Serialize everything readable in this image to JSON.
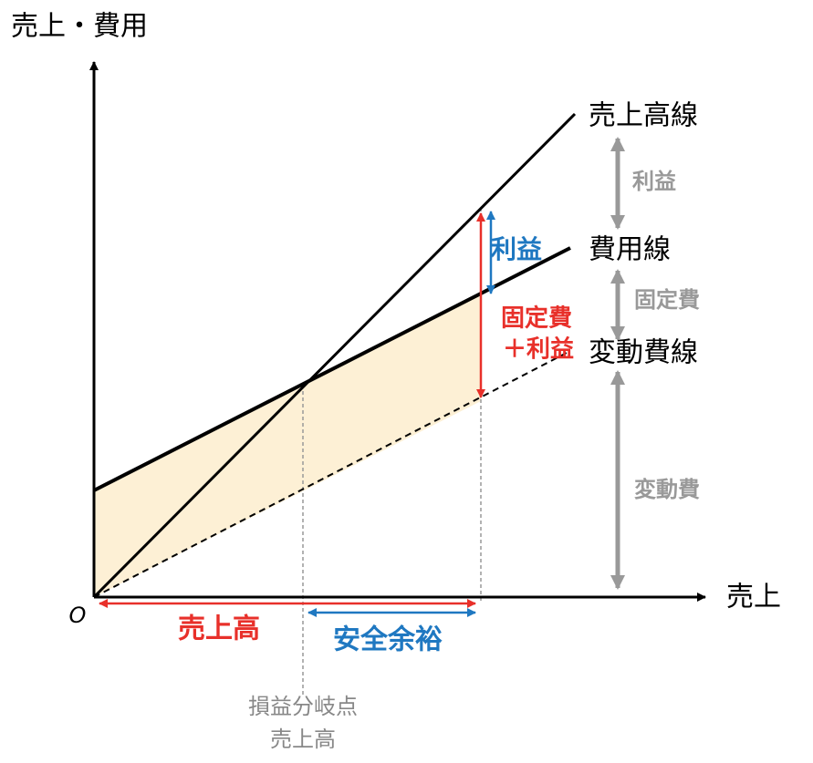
{
  "axes": {
    "y_label": "売上・費用",
    "x_label": "売上",
    "origin": "O"
  },
  "lines": {
    "sales": "売上高線",
    "cost": "費用線",
    "variable_cost": "変動費線"
  },
  "inner_labels": {
    "profit": "利益",
    "fixed_cost": "固定費",
    "plus_profit": "＋利益"
  },
  "right_labels": {
    "profit": "利益",
    "fixed_cost": "固定費",
    "variable_cost": "変動費"
  },
  "bottom_labels": {
    "sales": "売上高",
    "safety_margin": "安全余裕",
    "break_even_1": "損益分岐点",
    "break_even_2": "売上高"
  }
}
